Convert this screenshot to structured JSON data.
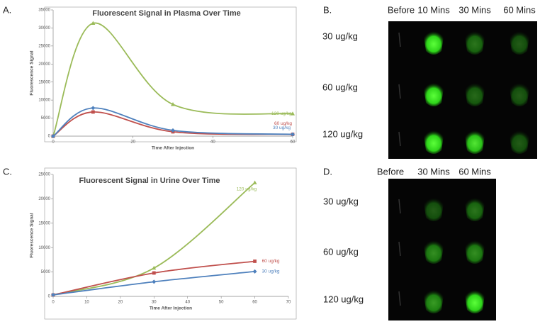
{
  "chart_data": [
    {
      "type": "line",
      "panel_label": "A.",
      "title": "Fluorescent Signal in Plasma Over Time",
      "x_label": "Time After Injection",
      "y_label": "Fluorescence Signal",
      "xlim": [
        0,
        60
      ],
      "xticks": [
        0,
        20,
        40,
        60
      ],
      "ylim": [
        0,
        35000
      ],
      "yticks": [
        0,
        5000,
        10000,
        15000,
        20000,
        25000,
        30000,
        35000
      ],
      "smooth": true,
      "x": [
        0,
        10,
        30,
        60
      ],
      "series": [
        {
          "name": "120 ug/kg",
          "color": "#9bbb59",
          "marker": "triangle",
          "values": [
            0,
            31300,
            8800,
            6200
          ]
        },
        {
          "name": "60 ug/kg",
          "color": "#c0504d",
          "marker": "square",
          "values": [
            0,
            6700,
            1200,
            500
          ]
        },
        {
          "name": "30 ug/kg",
          "color": "#4f81bd",
          "marker": "diamond",
          "values": [
            0,
            7800,
            1600,
            500
          ]
        }
      ]
    },
    {
      "type": "line",
      "panel_label": "C.",
      "title": "Fluorescent Signal in Urine Over Time",
      "x_label": "Time After Injection",
      "y_label": "Fluorescence Signal",
      "xlim": [
        0,
        70
      ],
      "xticks": [
        0,
        10,
        20,
        30,
        40,
        50,
        60,
        70
      ],
      "ylim": [
        0,
        25000
      ],
      "yticks": [
        0,
        5000,
        10000,
        15000,
        20000,
        25000
      ],
      "smooth": true,
      "x": [
        0,
        30,
        60
      ],
      "series": [
        {
          "name": "120 ug/kg",
          "color": "#9bbb59",
          "marker": "triangle",
          "values": [
            300,
            5800,
            23300
          ]
        },
        {
          "name": "60 ug/kg",
          "color": "#c0504d",
          "marker": "square",
          "values": [
            300,
            4800,
            7200
          ]
        },
        {
          "name": "30 ug/kg",
          "color": "#4f81bd",
          "marker": "diamond",
          "values": [
            300,
            3000,
            5100
          ]
        }
      ]
    }
  ],
  "image_panels": [
    {
      "label": "B.",
      "columns": [
        "Before",
        "10 Mins",
        "30 Mins",
        "60 Mins"
      ],
      "rows": [
        "30 ug/kg",
        "60 ug/kg",
        "120 ug/kg"
      ]
    },
    {
      "label": "D.",
      "columns": [
        "Before",
        "30 Mins",
        "60 Mins"
      ],
      "rows": [
        "30 ug/kg",
        "60 ug/kg",
        "120 ug/kg"
      ]
    }
  ]
}
